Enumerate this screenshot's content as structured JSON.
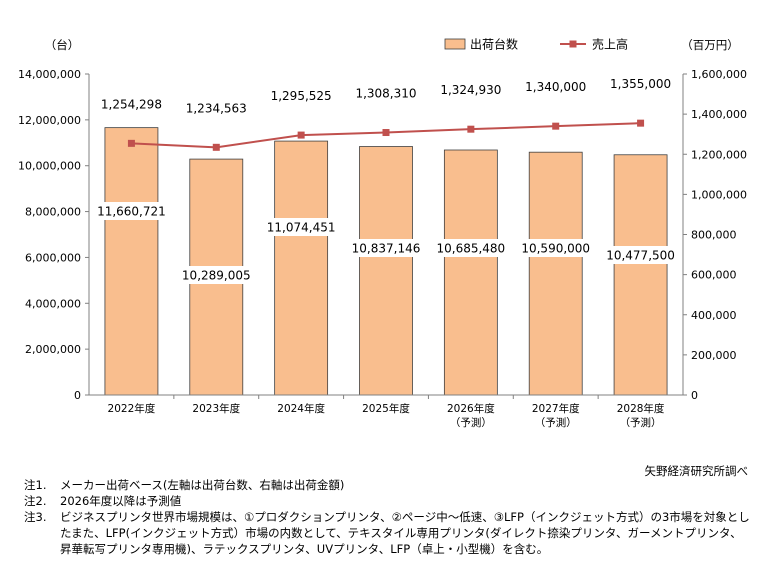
{
  "chart_data": {
    "type": "bar",
    "categories": [
      [
        "2022年度"
      ],
      [
        "2023年度"
      ],
      [
        "2024年度"
      ],
      [
        "2025年度"
      ],
      [
        "2026年度",
        "（予測）"
      ],
      [
        "2027年度",
        "（予測）"
      ],
      [
        "2028年度",
        "（予測）"
      ]
    ],
    "series": [
      {
        "name": "出荷台数",
        "kind": "bar",
        "axis": "left",
        "color": "#F9BE8E",
        "values": [
          11660721,
          10289005,
          11074451,
          10837146,
          10685480,
          10590000,
          10477500
        ],
        "labels": [
          "11,660,721",
          "10,289,005",
          "11,074,451",
          "10,837,146",
          "10,685,480",
          "10,590,000",
          "10,477,500"
        ]
      },
      {
        "name": "売上高",
        "kind": "line",
        "axis": "right",
        "color": "#C0504D",
        "values": [
          1254298,
          1234563,
          1295525,
          1308310,
          1324930,
          1340000,
          1355000
        ],
        "labels": [
          "1,254,298",
          "1,234,563",
          "1,295,525",
          "1,308,310",
          "1,324,930",
          "1,340,000",
          "1,355,000"
        ]
      }
    ],
    "left_axis": {
      "unit": "（台）",
      "range": [
        0,
        14000000
      ],
      "ticks": [
        "0",
        "2,000,000",
        "4,000,000",
        "6,000,000",
        "8,000,000",
        "10,000,000",
        "12,000,000",
        "14,000,000"
      ]
    },
    "right_axis": {
      "unit": "（百万円）",
      "range": [
        0,
        1600000
      ],
      "ticks": [
        "0",
        "200,000",
        "400,000",
        "600,000",
        "800,000",
        "1,000,000",
        "1,200,000",
        "1,400,000",
        "1,600,000"
      ]
    },
    "grid": false,
    "legend": "top-right"
  },
  "source": "矢野経済研究所調べ",
  "notes": [
    {
      "key": "注1.",
      "text": "メーカー出荷ベース(左軸は出荷台数、右軸は出荷金額)"
    },
    {
      "key": "注2.",
      "text": "2026年度以降は予測値"
    },
    {
      "key": "注3.",
      "text": "ビジネスプリンタ世界市場規模は、①プロダクションプリンタ、②ページ中～低速、③LFP（インクジェット方式）の3市場を対象としたまた、LFP(インクジェット方式）市場の内数として、テキスタイル専用プリンタ(ダイレクト捺染プリンタ、ガーメントプリンタ、昇華転写プリンタ専用機)、ラテックスプリンタ、UVプリンタ、LFP（卓上・小型機）を含む。"
    }
  ]
}
